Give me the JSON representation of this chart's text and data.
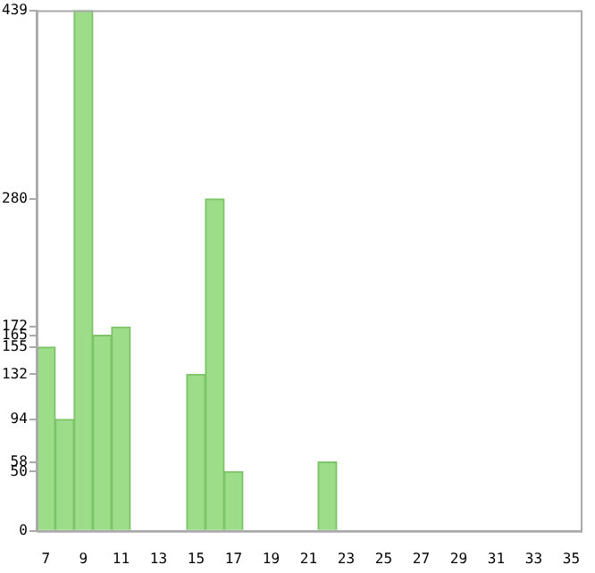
{
  "chart_data": {
    "type": "bar",
    "categories": [
      "7",
      null,
      "9",
      null,
      "11",
      null,
      "13",
      null,
      "15",
      null,
      "17",
      null,
      "19",
      null,
      "21",
      null,
      "23",
      null,
      "25",
      null,
      "27",
      null,
      "29",
      null,
      "31",
      null,
      "33",
      null,
      "35"
    ],
    "values": [
      155,
      94,
      439,
      165,
      172,
      0,
      0,
      0,
      132,
      280,
      50,
      0,
      0,
      0,
      0,
      58,
      0,
      0,
      0,
      0,
      0,
      0,
      0,
      0,
      0,
      0,
      0,
      0,
      0
    ],
    "color": "#9ddc88",
    "ylim": [
      0,
      439
    ],
    "yticks": [
      0,
      50,
      58,
      94,
      132,
      155,
      165,
      172,
      280,
      439
    ],
    "grid": false,
    "legend": false
  }
}
